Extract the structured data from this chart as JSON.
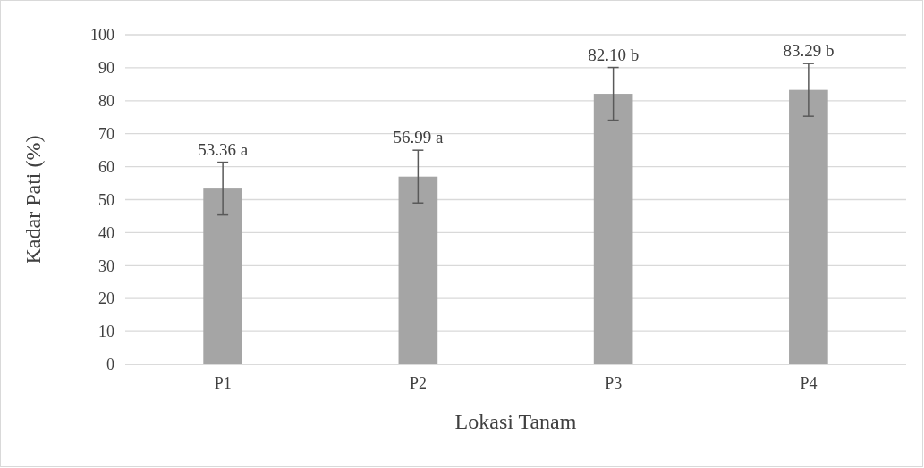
{
  "chart_data": {
    "type": "bar",
    "xlabel": "Lokasi Tanam",
    "ylabel": "Kadar Pati (%)",
    "categories": [
      "P1",
      "P2",
      "P3",
      "P4"
    ],
    "values": [
      53.36,
      56.99,
      82.1,
      83.29
    ],
    "errors": [
      8,
      8,
      8,
      8
    ],
    "value_labels": [
      "53.36 a",
      "56.99 a",
      "82.10 b",
      "83.29 b"
    ],
    "color": "#a5a5a5",
    "ylim": [
      0,
      100
    ],
    "yticks": [
      0,
      10,
      20,
      30,
      40,
      50,
      60,
      70,
      80,
      90,
      100
    ],
    "grid": "y"
  }
}
